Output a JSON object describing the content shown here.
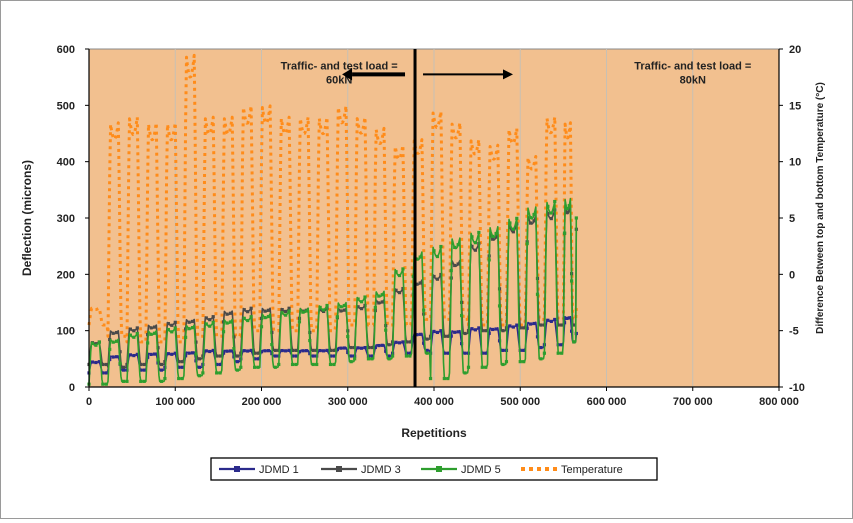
{
  "chart_data": {
    "type": "line",
    "xlabel": "Repetitions",
    "ylabel": "Deflection (microns)",
    "ylabel_right": "Difference Between top and bottom Temperature (°C)",
    "xlim": [
      0,
      800000
    ],
    "ylim": [
      0,
      600
    ],
    "ylim_right": [
      -10,
      20
    ],
    "x_ticks": [
      0,
      100000,
      200000,
      300000,
      400000,
      500000,
      600000,
      700000,
      800000
    ],
    "x_tick_labels": [
      "0",
      "100 000",
      "200 000",
      "300 000",
      "400 000",
      "500 000",
      "600 000",
      "700 000",
      "800 000"
    ],
    "y_ticks": [
      0,
      100,
      200,
      300,
      400,
      500,
      600
    ],
    "y_tick_labels": [
      "0",
      "100",
      "200",
      "300",
      "400",
      "500",
      "600"
    ],
    "y2_ticks": [
      -10,
      -5,
      0,
      5,
      10,
      15,
      20
    ],
    "y2_tick_labels": [
      "-10",
      "-5",
      "0",
      "5",
      "10",
      "15",
      "20"
    ],
    "grid": "vertical",
    "plot_background": "#f2c08f",
    "legend_position": "bottom",
    "annotations": [
      {
        "text_lines": [
          "Traffic- and test load =",
          "60kN"
        ],
        "arrow": "left",
        "x": 290000,
        "y": 560
      },
      {
        "text_lines": [
          "Traffic- and test load =",
          "80kN"
        ],
        "arrow": "right",
        "x": 700000,
        "y": 560
      }
    ],
    "divider_x": 378000,
    "series": [
      {
        "name": "JDMD 1",
        "axis": "left",
        "color": "#2b2a8c",
        "marker": "diamond",
        "dash": "solid",
        "cycle_x": [
          0,
          22000,
          44000,
          66000,
          88000,
          110000,
          132000,
          154000,
          176000,
          198000,
          220000,
          242000,
          264000,
          286000,
          308000,
          330000,
          352000,
          374000,
          396000,
          418000,
          440000,
          462000,
          484000,
          506000,
          528000,
          550000
        ],
        "cycle_low": [
          25,
          30,
          30,
          30,
          35,
          35,
          40,
          45,
          50,
          55,
          55,
          55,
          55,
          55,
          55,
          55,
          60,
          65,
          60,
          60,
          60,
          65,
          65,
          70,
          75,
          80
        ],
        "cycle_high": [
          45,
          55,
          58,
          60,
          60,
          62,
          65,
          65,
          65,
          65,
          65,
          65,
          65,
          70,
          70,
          75,
          80,
          95,
          100,
          100,
          105,
          105,
          110,
          115,
          120,
          125
        ],
        "end_x": 565000,
        "end_value": 95
      },
      {
        "name": "JDMD 3",
        "axis": "left",
        "color": "#4a4a4a",
        "marker": "triangle",
        "dash": "solid",
        "cycle_x": [
          0,
          22000,
          44000,
          66000,
          88000,
          110000,
          132000,
          154000,
          176000,
          198000,
          220000,
          242000,
          264000,
          286000,
          308000,
          330000,
          352000,
          374000,
          396000,
          418000,
          440000,
          462000,
          484000,
          506000,
          528000,
          550000
        ],
        "cycle_low": [
          40,
          35,
          40,
          40,
          45,
          50,
          55,
          55,
          60,
          65,
          65,
          65,
          65,
          70,
          70,
          75,
          80,
          85,
          90,
          95,
          100,
          100,
          105,
          110,
          110,
          110
        ],
        "cycle_high": [
          80,
          100,
          105,
          110,
          115,
          120,
          125,
          135,
          140,
          140,
          140,
          140,
          140,
          140,
          145,
          155,
          175,
          190,
          200,
          225,
          255,
          275,
          290,
          305,
          315,
          325
        ],
        "end_x": 565000,
        "end_value": 280
      },
      {
        "name": "JDMD 5",
        "axis": "left",
        "color": "#2e9e2e",
        "marker": "cross",
        "dash": "solid",
        "cycle_x": [
          0,
          22000,
          44000,
          66000,
          88000,
          110000,
          132000,
          154000,
          176000,
          198000,
          220000,
          242000,
          264000,
          286000,
          308000,
          330000,
          352000,
          374000,
          396000,
          418000,
          440000,
          462000,
          484000,
          506000,
          528000,
          550000
        ],
        "cycle_low": [
          5,
          10,
          10,
          10,
          15,
          20,
          25,
          30,
          35,
          35,
          40,
          40,
          40,
          45,
          50,
          50,
          55,
          60,
          15,
          25,
          35,
          40,
          45,
          50,
          60,
          80
        ],
        "cycle_high": [
          80,
          85,
          95,
          100,
          105,
          110,
          115,
          120,
          125,
          130,
          135,
          140,
          145,
          150,
          160,
          170,
          210,
          240,
          250,
          265,
          275,
          285,
          300,
          320,
          330,
          335
        ],
        "end_x": 565000,
        "end_value": 300
      },
      {
        "name": "Temperature",
        "axis": "right",
        "color": "#ff8c1a",
        "marker": "square",
        "dash": "dotted",
        "cycle_x": [
          0,
          22000,
          44000,
          66000,
          88000,
          110000,
          132000,
          154000,
          176000,
          198000,
          220000,
          242000,
          264000,
          286000,
          308000,
          330000,
          352000,
          374000,
          396000,
          418000,
          440000,
          462000,
          484000,
          506000,
          528000,
          550000
        ],
        "cycle_low": [
          -4.5,
          -5.5,
          -6,
          -6,
          -6,
          -5.5,
          -5.5,
          -5.5,
          -5,
          -5,
          -5,
          -5,
          -5,
          -4.5,
          -4.5,
          -4.5,
          -4.5,
          -4,
          -4,
          -4,
          -4.5,
          -4.5,
          -4.5,
          -4,
          -4,
          -4
        ],
        "cycle_high": [
          -3,
          13.5,
          14,
          13.5,
          13.5,
          19.5,
          14,
          14,
          15,
          15,
          14,
          14,
          14,
          15,
          14,
          13,
          11.5,
          12,
          14.5,
          13.5,
          12,
          11.5,
          13,
          10.5,
          14,
          13.5
        ],
        "end_x": 565000,
        "end_value": -3
      }
    ]
  }
}
